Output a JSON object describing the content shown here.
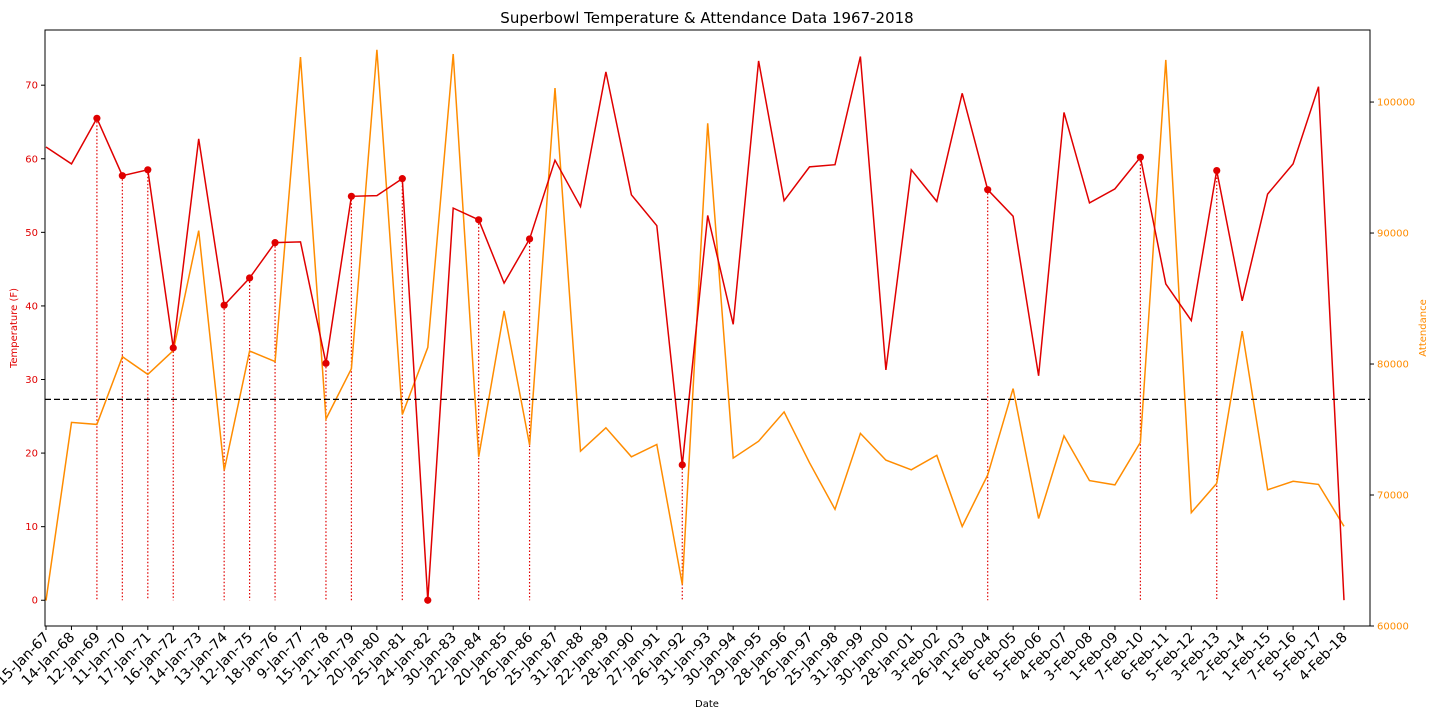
{
  "chart_data": {
    "type": "line",
    "title": "Superbowl Temperature & Attendance Data 1967-2018",
    "xlabel": "Date",
    "ylabel_left": "Temperature (F)",
    "ylabel_right": "Attendance",
    "ylim_left": [
      -3.5,
      77.5
    ],
    "ylim_right": [
      60000,
      105500
    ],
    "left_ticks": [
      0,
      10,
      20,
      30,
      40,
      50,
      60,
      70
    ],
    "right_ticks": [
      60000,
      70000,
      80000,
      90000,
      100000
    ],
    "reference_line_temperature": 27.3,
    "colors": {
      "temperature": "#e00000",
      "attendance": "#ff8c00",
      "reference": "#000000"
    },
    "categories": [
      "15-Jan-67",
      "14-Jan-68",
      "12-Jan-69",
      "11-Jan-70",
      "17-Jan-71",
      "16-Jan-72",
      "14-Jan-73",
      "13-Jan-74",
      "12-Jan-75",
      "18-Jan-76",
      "9-Jan-77",
      "15-Jan-78",
      "21-Jan-79",
      "20-Jan-80",
      "25-Jan-81",
      "24-Jan-82",
      "30-Jan-83",
      "22-Jan-84",
      "20-Jan-85",
      "26-Jan-86",
      "25-Jan-87",
      "31-Jan-88",
      "22-Jan-89",
      "28-Jan-90",
      "27-Jan-91",
      "26-Jan-92",
      "31-Jan-93",
      "30-Jan-94",
      "29-Jan-95",
      "28-Jan-96",
      "26-Jan-97",
      "25-Jan-98",
      "31-Jan-99",
      "30-Jan-00",
      "28-Jan-01",
      "3-Feb-02",
      "26-Jan-03",
      "1-Feb-04",
      "6-Feb-05",
      "5-Feb-06",
      "4-Feb-07",
      "3-Feb-08",
      "1-Feb-09",
      "7-Feb-10",
      "6-Feb-11",
      "5-Feb-12",
      "3-Feb-13",
      "2-Feb-14",
      "1-Feb-15",
      "7-Feb-16",
      "5-Feb-17",
      "4-Feb-18"
    ],
    "series": [
      {
        "name": "Temperature (F)",
        "axis": "left",
        "values": [
          61.6,
          59.3,
          65.5,
          57.7,
          58.5,
          34.3,
          62.7,
          40.1,
          43.8,
          48.6,
          48.7,
          32.2,
          54.9,
          55.0,
          57.3,
          0.0,
          53.3,
          51.7,
          43.1,
          49.1,
          59.8,
          53.5,
          71.8,
          55.1,
          50.9,
          18.4,
          52.3,
          37.5,
          73.3,
          54.3,
          58.9,
          59.2,
          73.9,
          31.3,
          58.5,
          54.2,
          68.9,
          55.8,
          52.2,
          30.5,
          66.3,
          54.0,
          55.9,
          60.2,
          43.0,
          38.0,
          58.4,
          40.7,
          55.2,
          59.3,
          69.8,
          0.0
        ],
        "markers_at": [
          "12-Jan-69",
          "11-Jan-70",
          "17-Jan-71",
          "16-Jan-72",
          "13-Jan-74",
          "12-Jan-75",
          "18-Jan-76",
          "15-Jan-78",
          "21-Jan-79",
          "25-Jan-81",
          "24-Jan-82",
          "22-Jan-84",
          "26-Jan-86",
          "26-Jan-92",
          "1-Feb-04",
          "7-Feb-10",
          "3-Feb-13"
        ]
      },
      {
        "name": "Attendance",
        "axis": "right",
        "values": [
          61946,
          75546,
          75389,
          80562,
          79204,
          81023,
          90182,
          71882,
          80997,
          80187,
          103438,
          75804,
          79641,
          103985,
          76135,
          81270,
          103667,
          72920,
          84059,
          73818,
          101063,
          73344,
          75129,
          72919,
          73859,
          63172,
          98374,
          72817,
          74107,
          76347,
          72464,
          68912,
          74703,
          72669,
          71928,
          73027,
          67597,
          71525,
          78125,
          68206,
          74512,
          71101,
          70774,
          74025,
          103219,
          68658,
          70883,
          82514,
          70397,
          71048,
          70807,
          67612
        ]
      }
    ]
  }
}
